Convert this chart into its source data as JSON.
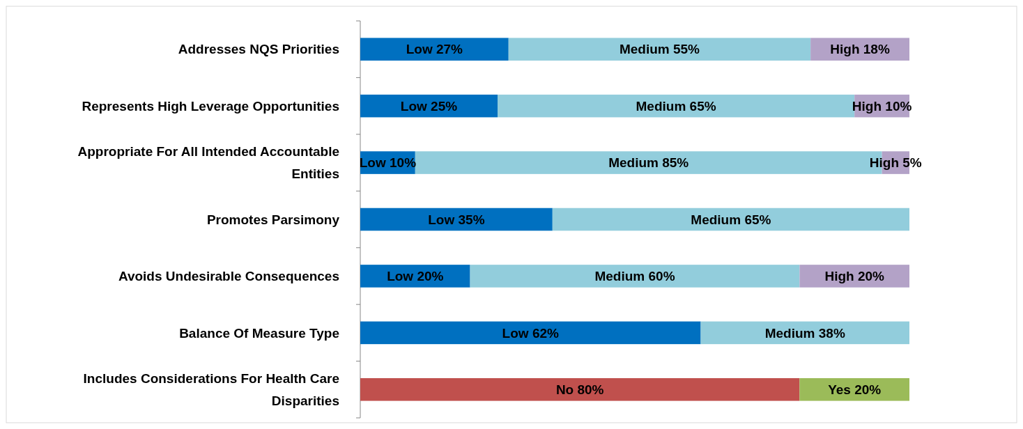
{
  "chart_data": {
    "type": "bar",
    "orientation": "horizontal",
    "stacked": true,
    "categories": [
      "Addresses NQS Priorities",
      "Represents High Leverage Opportunities",
      "Appropriate For All Intended Accountable Entities",
      "Promotes Parsimony",
      "Avoids Undesirable Consequences",
      "Balance Of Measure Type",
      "Includes Considerations For Health Care Disparities"
    ],
    "series": [
      {
        "color": "#0070c0",
        "values": [
          27,
          25,
          10,
          35,
          20,
          62,
          null
        ],
        "value_labels": [
          "Low 27%",
          "Low 25%",
          "Low 10%",
          "Low 35%",
          "Low 20%",
          "Low 62%",
          null
        ]
      },
      {
        "color": "#92cddc",
        "values": [
          55,
          65,
          85,
          65,
          60,
          38,
          null
        ],
        "value_labels": [
          "Medium 55%",
          "Medium 65%",
          "Medium 85%",
          "Medium 65%",
          "Medium 60%",
          "Medium 38%",
          null
        ]
      },
      {
        "color": "#b3a2c7",
        "values": [
          18,
          10,
          5,
          null,
          20,
          null,
          null
        ],
        "value_labels": [
          "High 18%",
          "High 10%",
          "High 5%",
          null,
          "High 20%",
          null,
          null
        ]
      },
      {
        "color": "#c0504d",
        "values": [
          null,
          null,
          null,
          null,
          null,
          null,
          80
        ],
        "value_labels": [
          null,
          null,
          null,
          null,
          null,
          null,
          "No 80%"
        ]
      },
      {
        "color": "#9bbb59",
        "values": [
          null,
          null,
          null,
          null,
          null,
          null,
          20
        ],
        "value_labels": [
          null,
          null,
          null,
          null,
          null,
          null,
          "Yes 20%"
        ]
      }
    ]
  }
}
